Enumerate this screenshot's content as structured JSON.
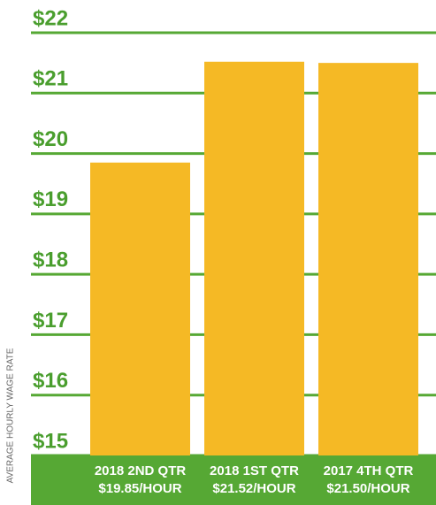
{
  "chart_data": {
    "type": "bar",
    "y_axis_label": "AVERAGE HOURLY WAGE RATE",
    "categories": [
      "2018 2ND QTR",
      "2018 1ST QTR",
      "2017 4TH QTR"
    ],
    "values": [
      19.85,
      21.52,
      21.5
    ],
    "value_labels": [
      "$19.85/HOUR",
      "$21.52/HOUR",
      "$21.50/HOUR"
    ],
    "color": "#f5b925",
    "grid_color": "#56a834",
    "ylim": [
      15,
      22
    ],
    "yticks": [
      {
        "value": 15,
        "label": "$15"
      },
      {
        "value": 16,
        "label": "$16"
      },
      {
        "value": 17,
        "label": "$17"
      },
      {
        "value": 18,
        "label": "$18"
      },
      {
        "value": 19,
        "label": "$19"
      },
      {
        "value": 20,
        "label": "$20"
      },
      {
        "value": 21,
        "label": "$21"
      },
      {
        "value": 22,
        "label": "$22"
      }
    ],
    "grid": true
  }
}
